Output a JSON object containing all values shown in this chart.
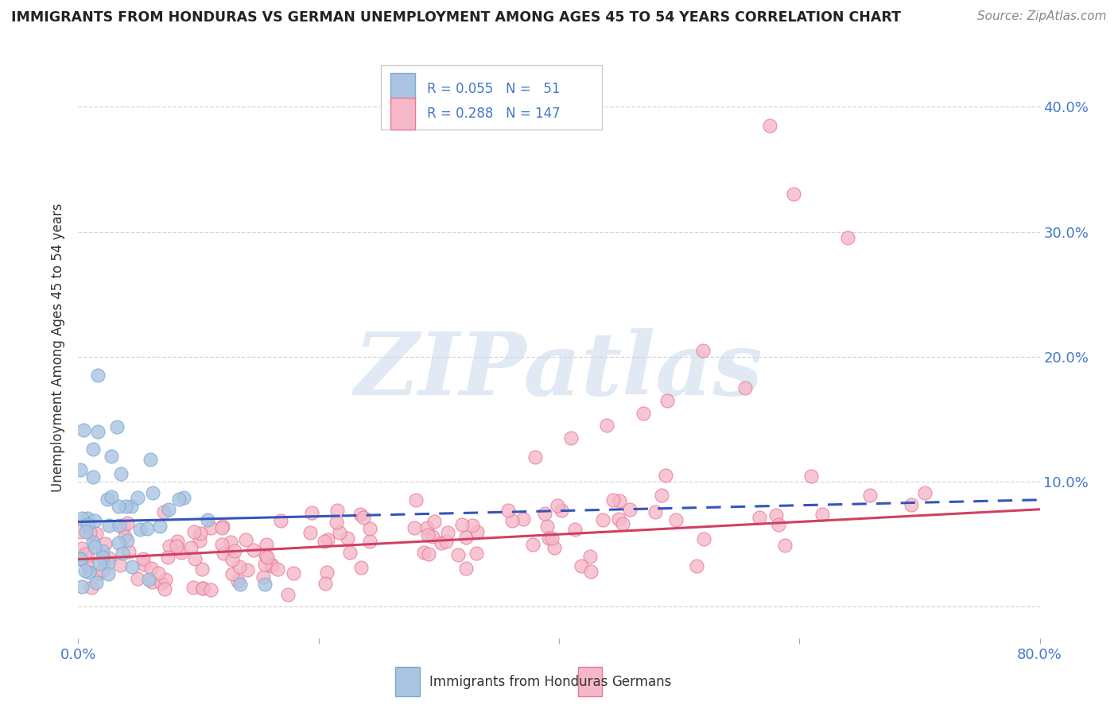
{
  "title": "IMMIGRANTS FROM HONDURAS VS GERMAN UNEMPLOYMENT AMONG AGES 45 TO 54 YEARS CORRELATION CHART",
  "source": "Source: ZipAtlas.com",
  "ylabel": "Unemployment Among Ages 45 to 54 years",
  "watermark": "ZIPatlas",
  "legend_r1": "R = 0.055",
  "legend_n1": "N =  51",
  "legend_r2": "R = 0.288",
  "legend_n2": "N = 147",
  "series1_color": "#aac4e2",
  "series1_edge": "#7aaad0",
  "series2_color": "#f5b8c8",
  "series2_edge": "#e87898",
  "trendline1_color": "#3355bb",
  "trendline2_color": "#d04060",
  "grid_color": "#cccccc",
  "bg_color": "#ffffff",
  "title_color": "#222222",
  "axis_label_color": "#4477cc",
  "legend_text_color": "#4477cc",
  "xlim": [
    0.0,
    0.8
  ],
  "ylim": [
    -0.025,
    0.44
  ],
  "ytick_positions": [
    0.0,
    0.1,
    0.2,
    0.3,
    0.4
  ],
  "ytick_labels_right": [
    "",
    "10.0%",
    "20.0%",
    "30.0%",
    "40.0%"
  ],
  "xtick_positions": [
    0.0,
    0.2,
    0.4,
    0.6,
    0.8
  ],
  "xtick_labels": [
    "0.0%",
    "",
    "",
    "",
    "80.0%"
  ]
}
